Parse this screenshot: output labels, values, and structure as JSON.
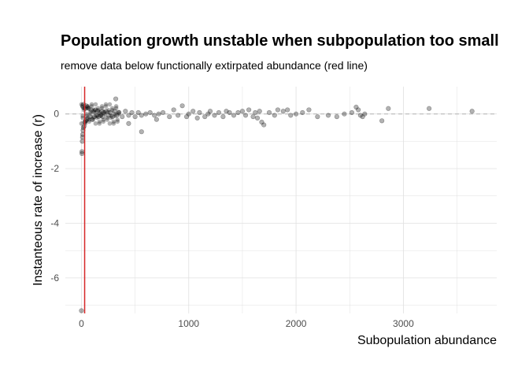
{
  "chart_data": {
    "type": "scatter",
    "title": "Population growth unstable when subpopulation too small",
    "subtitle": "remove data below functionally extirpated abundance (red line)",
    "xlabel": "Subopulation abundance",
    "ylabel": "Instanteous rate of increase (r)",
    "xlim": [
      -150,
      3870
    ],
    "ylim": [
      -7.3,
      1.0
    ],
    "x_ticks": [
      0,
      1000,
      2000,
      3000
    ],
    "x_tick_labels": [
      "0",
      "1000",
      "2000",
      "3000"
    ],
    "y_ticks": [
      0,
      -2,
      -4,
      -6
    ],
    "y_tick_labels": [
      "0",
      "-2",
      "-4",
      "-6"
    ],
    "grid": true,
    "reference_lines": {
      "vertical_x": 30,
      "vertical_color": "#d62728",
      "horizontal_dashed_y": 0,
      "horizontal_color": "#b3b3b3"
    },
    "point_color": "#000000",
    "point_opacity": 0.3,
    "dense_cluster_points": [
      [
        0,
        -7.2
      ],
      [
        5,
        -1.45
      ],
      [
        5,
        -1.38
      ],
      [
        8,
        -1.0
      ],
      [
        10,
        -0.85
      ],
      [
        12,
        -0.75
      ],
      [
        15,
        -0.6
      ],
      [
        18,
        -0.5
      ],
      [
        10,
        0.3
      ],
      [
        15,
        0.25
      ],
      [
        20,
        0.35
      ],
      [
        25,
        -0.45
      ],
      [
        30,
        -0.3
      ],
      [
        35,
        0.2
      ],
      [
        40,
        -0.25
      ],
      [
        45,
        0.3
      ],
      [
        50,
        -0.2
      ],
      [
        55,
        0.25
      ],
      [
        60,
        -0.15
      ],
      [
        70,
        0.2
      ],
      [
        80,
        -0.1
      ],
      [
        90,
        0.15
      ],
      [
        100,
        -0.2
      ],
      [
        110,
        0.1
      ],
      [
        120,
        -0.1
      ],
      [
        130,
        0.15
      ],
      [
        140,
        -0.05
      ],
      [
        150,
        0.1
      ],
      [
        160,
        -0.1
      ],
      [
        170,
        0.05
      ],
      [
        180,
        -0.05
      ],
      [
        190,
        0.1
      ],
      [
        200,
        -0.1
      ],
      [
        210,
        0.05
      ],
      [
        230,
        0.1
      ],
      [
        250,
        -0.05
      ],
      [
        270,
        0.05
      ],
      [
        290,
        -0.1
      ],
      [
        310,
        0.1
      ],
      [
        330,
        -0.05
      ],
      [
        350,
        0.05
      ],
      [
        380,
        -0.1
      ],
      [
        410,
        0.1
      ],
      [
        440,
        -0.05
      ],
      [
        470,
        0.05
      ],
      [
        500,
        -0.1
      ],
      [
        530,
        0.05
      ],
      [
        560,
        -0.05
      ],
      [
        600,
        0.0
      ],
      [
        640,
        0.05
      ],
      [
        680,
        -0.05
      ],
      [
        720,
        0.0
      ]
    ],
    "points": [
      [
        320,
        0.55
      ],
      [
        440,
        -0.35
      ],
      [
        560,
        -0.65
      ],
      [
        700,
        -0.2
      ],
      [
        760,
        0.05
      ],
      [
        820,
        -0.1
      ],
      [
        860,
        0.15
      ],
      [
        900,
        -0.05
      ],
      [
        940,
        0.3
      ],
      [
        980,
        -0.1
      ],
      [
        1000,
        0.0
      ],
      [
        1040,
        0.1
      ],
      [
        1080,
        -0.15
      ],
      [
        1100,
        0.05
      ],
      [
        1150,
        -0.1
      ],
      [
        1180,
        0.0
      ],
      [
        1200,
        0.1
      ],
      [
        1240,
        -0.05
      ],
      [
        1280,
        0.05
      ],
      [
        1320,
        -0.1
      ],
      [
        1350,
        0.1
      ],
      [
        1380,
        0.05
      ],
      [
        1420,
        -0.05
      ],
      [
        1460,
        0.05
      ],
      [
        1500,
        0.1
      ],
      [
        1530,
        -0.05
      ],
      [
        1560,
        0.15
      ],
      [
        1600,
        -0.1
      ],
      [
        1620,
        0.05
      ],
      [
        1640,
        -0.15
      ],
      [
        1660,
        0.1
      ],
      [
        1680,
        -0.3
      ],
      [
        1700,
        -0.4
      ],
      [
        1750,
        0.05
      ],
      [
        1800,
        -0.05
      ],
      [
        1830,
        0.15
      ],
      [
        1880,
        0.1
      ],
      [
        1920,
        0.15
      ],
      [
        1950,
        -0.05
      ],
      [
        2000,
        0.0
      ],
      [
        2060,
        0.05
      ],
      [
        2120,
        0.15
      ],
      [
        2200,
        -0.1
      ],
      [
        2300,
        -0.05
      ],
      [
        2380,
        -0.1
      ],
      [
        2450,
        0.0
      ],
      [
        2520,
        0.05
      ],
      [
        2560,
        0.25
      ],
      [
        2580,
        0.15
      ],
      [
        2600,
        -0.05
      ],
      [
        2620,
        -0.1
      ],
      [
        2640,
        0.0
      ],
      [
        2800,
        -0.25
      ],
      [
        2860,
        0.2
      ],
      [
        3240,
        0.2
      ],
      [
        3640,
        0.1
      ]
    ]
  }
}
